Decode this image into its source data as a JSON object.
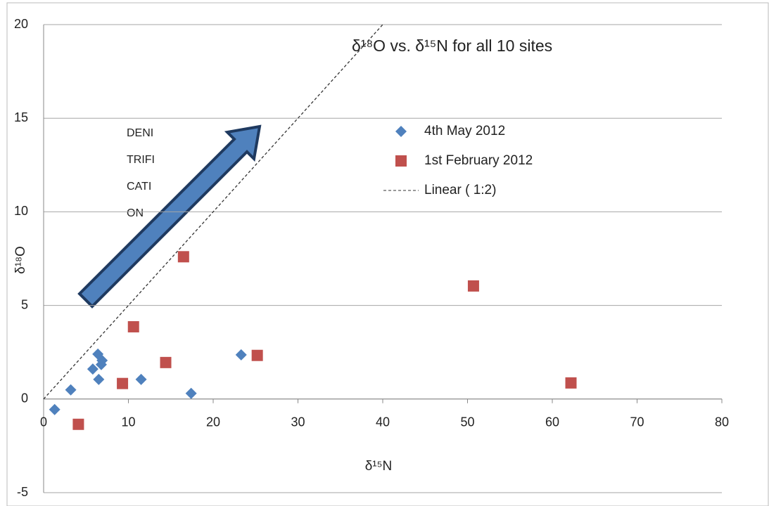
{
  "chart_data": {
    "type": "scatter",
    "title": "δ¹⁸O vs. δ¹⁵N for all 10 sites",
    "x_label": "δ¹⁵N",
    "y_label": "δ¹⁸O",
    "annotation_lines": [
      "DENI",
      "TRIFI",
      "CATI",
      "ON"
    ],
    "xlim": [
      0,
      80
    ],
    "ylim": [
      -5,
      20
    ],
    "xticks": [
      0,
      10,
      20,
      30,
      40,
      50,
      60,
      70,
      80
    ],
    "yticks": [
      -5,
      0,
      5,
      10,
      15,
      20
    ],
    "grid": true,
    "legend": "upper center",
    "series": [
      {
        "name": "4th May 2012",
        "color": "#4f81bd",
        "marker": "diamond",
        "x": [
          1.3,
          3.2,
          5.8,
          6.4,
          6.9,
          6.8,
          6.5,
          11.5,
          17.4,
          23.3
        ],
        "values": [
          -0.56,
          0.49,
          1.6,
          2.4,
          2.06,
          1.84,
          1.05,
          1.05,
          0.3,
          2.36
        ]
      },
      {
        "name": "1st February 2012",
        "color": "#c0504d",
        "marker": "square",
        "x": [
          4.1,
          9.3,
          10.6,
          14.4,
          16.5,
          25.2,
          50.7,
          62.2
        ],
        "values": [
          -1.35,
          0.83,
          3.86,
          1.95,
          7.6,
          2.33,
          6.04,
          0.86
        ]
      },
      {
        "name": "Linear ( 1:2)",
        "color": "#333333",
        "marker": "none",
        "dashed": true,
        "x": [
          0,
          40
        ],
        "values": [
          0,
          20
        ]
      }
    ]
  }
}
